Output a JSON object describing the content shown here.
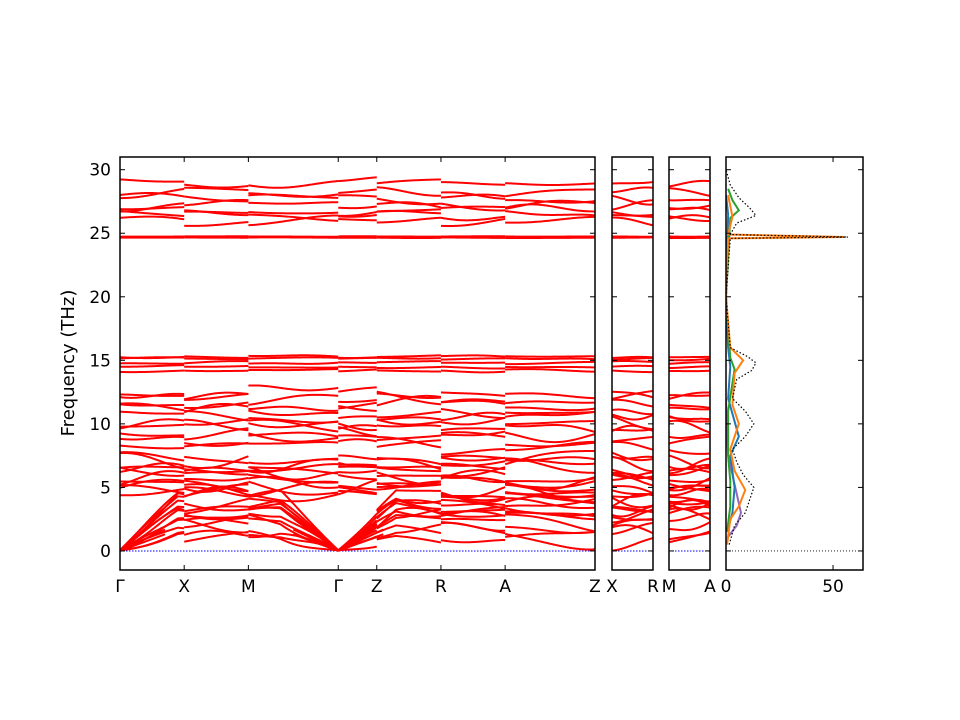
{
  "chart_data": {
    "type": "line",
    "ylabel": "Frequency (THz)",
    "ylim": [
      -1.5,
      31
    ],
    "yticks": [
      0,
      5,
      10,
      15,
      20,
      25,
      30
    ],
    "band_color": "#ff0000",
    "zero_line_color": "#0000ff",
    "grid": false,
    "panels": [
      {
        "kind": "band",
        "path_labels": [
          "Γ",
          "X",
          "M",
          "Γ",
          "Z",
          "R",
          "A",
          "Z"
        ],
        "path_positions": [
          0,
          1,
          2,
          3.4,
          4.0,
          5.0,
          6.0,
          7.4
        ]
      },
      {
        "kind": "band",
        "path_labels": [
          "X",
          "R"
        ],
        "path_positions": [
          0,
          1
        ]
      },
      {
        "kind": "band",
        "path_labels": [
          "M",
          "A"
        ],
        "path_positions": [
          0,
          1
        ]
      },
      {
        "kind": "dos",
        "xlim": [
          0,
          64
        ],
        "xticks": [
          0,
          50
        ],
        "xtick_labels": [
          "0",
          "50"
        ],
        "components": [
          {
            "color": "#000000",
            "style": "dotted",
            "points": [
              [
                1.5,
                0.5
              ],
              [
                4,
                2
              ],
              [
                9,
                3
              ],
              [
                11,
                4
              ],
              [
                13,
                5
              ],
              [
                8,
                6
              ],
              [
                5,
                7
              ],
              [
                3,
                8
              ],
              [
                9,
                9
              ],
              [
                13,
                10
              ],
              [
                9,
                11
              ],
              [
                3,
                12
              ],
              [
                5,
                13.5
              ],
              [
                12,
                14.2
              ],
              [
                14,
                14.8
              ],
              [
                10,
                15.3
              ],
              [
                2,
                16
              ],
              [
                0,
                20
              ],
              [
                2,
                24.6
              ],
              [
                57,
                24.7
              ],
              [
                2,
                24.9
              ],
              [
                5,
                25.8
              ],
              [
                14,
                26.4
              ],
              [
                11,
                27
              ],
              [
                6,
                27.8
              ],
              [
                2,
                28.8
              ],
              [
                0,
                30
              ]
            ]
          },
          {
            "color": "#ff7f0e",
            "style": "solid",
            "points": [
              [
                0.5,
                0.5
              ],
              [
                2,
                2.5
              ],
              [
                6,
                3.5
              ],
              [
                9,
                4.8
              ],
              [
                4,
                6.3
              ],
              [
                2,
                8
              ],
              [
                6,
                10
              ],
              [
                3,
                11.5
              ],
              [
                4,
                14
              ],
              [
                8,
                15
              ],
              [
                2,
                16
              ],
              [
                0,
                20
              ],
              [
                1,
                24.6
              ],
              [
                55,
                24.7
              ],
              [
                1,
                24.9
              ],
              [
                3,
                26.3
              ],
              [
                1,
                28
              ]
            ]
          },
          {
            "color": "#1f77b4",
            "style": "solid",
            "points": [
              [
                0.5,
                1.5
              ],
              [
                3,
                3
              ],
              [
                4,
                5
              ],
              [
                2,
                7.5
              ],
              [
                6,
                9
              ],
              [
                3,
                10.8
              ],
              [
                1,
                12
              ],
              [
                2,
                14.5
              ],
              [
                1,
                16
              ],
              [
                0,
                20
              ],
              [
                1,
                26.5
              ],
              [
                0,
                28
              ]
            ]
          },
          {
            "color": "#2ca02c",
            "style": "solid",
            "points": [
              [
                0.5,
                1.5
              ],
              [
                2,
                3.5
              ],
              [
                2,
                5.5
              ],
              [
                1,
                7.5
              ],
              [
                1,
                11
              ],
              [
                4,
                14.3
              ],
              [
                2,
                15.2
              ],
              [
                0,
                20
              ],
              [
                2,
                26.2
              ],
              [
                6,
                26.8
              ],
              [
                3,
                27.6
              ],
              [
                1,
                28.5
              ]
            ]
          },
          {
            "color": "#9467bd",
            "style": "solid",
            "points": [
              [
                0.5,
                1
              ],
              [
                5,
                2
              ],
              [
                7,
                3
              ],
              [
                5,
                4.5
              ],
              [
                3,
                6
              ],
              [
                1,
                7.5
              ],
              [
                0.5,
                9
              ],
              [
                0,
                12
              ]
            ]
          }
        ]
      }
    ]
  }
}
